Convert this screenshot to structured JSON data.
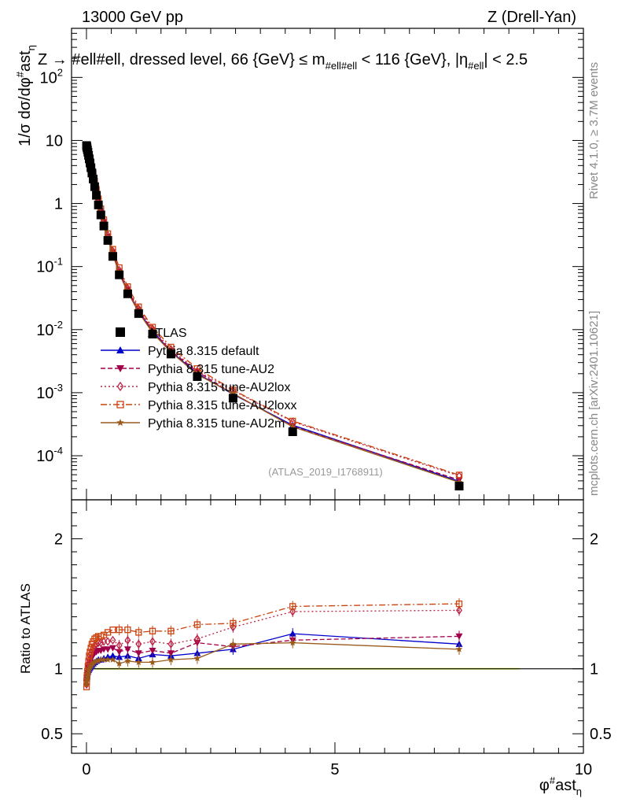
{
  "header": {
    "left": "13000 GeV pp",
    "right": "Z (Drell-Yan)"
  },
  "cut_label": {
    "pre": "Z → #ell#ell, dressed level, 66 {GeV} ≤ m",
    "sub1": "#ell#ell",
    "mid": " < 116 {GeV}, |η",
    "sub2": "#ell",
    "post": "| < 2.5"
  },
  "side_labels": {
    "rivet": "Rivet 4.1.0, ≥ 3.7M events",
    "mcplots": "mcplots.cern.ch [arXiv:2401.10621]"
  },
  "reference": "(ATLAS_2019_I1768911)",
  "axes": {
    "ylabel_main": "1/σ dσ/dφ",
    "ylabel_main_sup": "#",
    "ylabel_main_tail": "ast",
    "ylabel_main_sub": "η",
    "ylabel_ratio": "Ratio to ATLAS",
    "xlabel": "φ",
    "xlabel_sup": "#",
    "xlabel_tail": "ast",
    "xlabel_sub": "η",
    "x_ticks": [
      "0",
      "5",
      "10"
    ],
    "y_ticks_main": [
      {
        "base": "10",
        "exp": "-4",
        "value": 0.0001
      },
      {
        "base": "10",
        "exp": "-3",
        "value": 0.001
      },
      {
        "base": "10",
        "exp": "-2",
        "value": 0.01
      },
      {
        "base": "10",
        "exp": "-1",
        "value": 0.1
      },
      {
        "base": "1",
        "exp": "",
        "value": 1
      },
      {
        "base": "10",
        "exp": "",
        "value": 10
      },
      {
        "base": "10",
        "exp": "2",
        "value": 100
      }
    ],
    "y_ticks_ratio": [
      "0.5",
      "1",
      "2"
    ]
  },
  "legend": [
    {
      "label": "ATLAS"
    },
    {
      "label": "Pythia 8.315 default"
    },
    {
      "label": "Pythia 8.315 tune-AU2"
    },
    {
      "label": "Pythia 8.315 tune-AU2lox"
    },
    {
      "label": "Pythia 8.315 tune-AU2loxx"
    },
    {
      "label": "Pythia 8.315 tune-AU2m"
    }
  ],
  "chart_data": {
    "type": "line",
    "xlim": [
      -0.3,
      10
    ],
    "ylim_main": [
      2e-05,
      600
    ],
    "ylim_ratio": [
      0.35,
      2.3
    ],
    "x": [
      0.002,
      0.006,
      0.012,
      0.02,
      0.03,
      0.042,
      0.056,
      0.072,
      0.09,
      0.11,
      0.135,
      0.165,
      0.2,
      0.24,
      0.29,
      0.35,
      0.43,
      0.53,
      0.66,
      0.83,
      1.05,
      1.33,
      1.7,
      2.23,
      2.95,
      4.15,
      7.5
    ],
    "series": [
      {
        "name": "ATLAS",
        "color": "#000000",
        "marker": "square",
        "values": [
          8.3,
          8.0,
          7.6,
          7.1,
          6.5,
          5.8,
          5.1,
          4.4,
          3.7,
          3.05,
          2.45,
          1.85,
          1.35,
          0.95,
          0.66,
          0.44,
          0.26,
          0.145,
          0.074,
          0.037,
          0.018,
          0.0085,
          0.0041,
          0.0018,
          0.00082,
          0.00024,
          3.3e-05
        ]
      },
      {
        "name": "Pythia 8.315 default",
        "color": "#0000cc",
        "marker": "triangle-up",
        "line": "solid",
        "ratio": [
          0.93,
          0.95,
          0.96,
          0.97,
          0.98,
          0.99,
          1.0,
          1.01,
          1.02,
          1.03,
          1.04,
          1.05,
          1.06,
          1.07,
          1.07,
          1.08,
          1.09,
          1.1,
          1.09,
          1.1,
          1.08,
          1.11,
          1.1,
          1.12,
          1.15,
          1.27,
          1.19
        ]
      },
      {
        "name": "Pythia 8.315 tune-AU2",
        "color": "#a0004a",
        "marker": "triangle-down",
        "line": "dashed",
        "ratio": [
          0.9,
          0.93,
          0.95,
          0.97,
          0.99,
          1.01,
          1.03,
          1.05,
          1.07,
          1.09,
          1.11,
          1.12,
          1.13,
          1.14,
          1.14,
          1.15,
          1.15,
          1.16,
          1.13,
          1.15,
          1.12,
          1.14,
          1.12,
          1.2,
          1.17,
          1.22,
          1.25
        ]
      },
      {
        "name": "Pythia 8.315 tune-AU2lox",
        "color": "#bb2244",
        "marker": "diamond-open",
        "line": "dotted",
        "ratio": [
          0.88,
          0.92,
          0.95,
          0.98,
          1.01,
          1.04,
          1.07,
          1.1,
          1.12,
          1.14,
          1.16,
          1.18,
          1.19,
          1.2,
          1.2,
          1.21,
          1.21,
          1.22,
          1.18,
          1.22,
          1.19,
          1.21,
          1.19,
          1.23,
          1.32,
          1.44,
          1.45
        ]
      },
      {
        "name": "Pythia 8.315 tune-AU2loxx",
        "color": "#cc4411",
        "marker": "square-open",
        "line": "dashdot",
        "ratio": [
          0.86,
          0.9,
          0.94,
          0.98,
          1.02,
          1.06,
          1.1,
          1.13,
          1.16,
          1.19,
          1.21,
          1.23,
          1.24,
          1.25,
          1.25,
          1.26,
          1.28,
          1.3,
          1.3,
          1.3,
          1.28,
          1.29,
          1.29,
          1.34,
          1.35,
          1.48,
          1.5
        ]
      },
      {
        "name": "Pythia 8.315 tune-AU2m",
        "color": "#9a5a1a",
        "marker": "star",
        "line": "solid",
        "ratio": [
          0.88,
          0.9,
          0.92,
          0.94,
          0.96,
          0.98,
          1.0,
          1.01,
          1.02,
          1.03,
          1.04,
          1.05,
          1.06,
          1.06,
          1.07,
          1.07,
          1.07,
          1.07,
          1.04,
          1.06,
          1.05,
          1.05,
          1.07,
          1.08,
          1.19,
          1.2,
          1.15
        ]
      }
    ],
    "atlas_band_color": "#ccee33"
  }
}
